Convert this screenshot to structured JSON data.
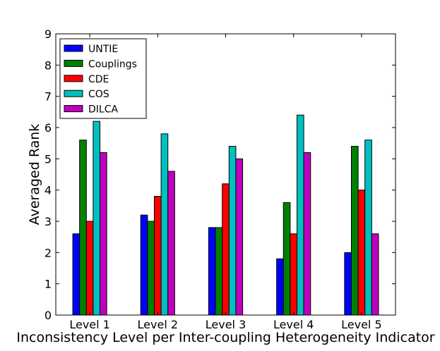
{
  "chart_data": {
    "type": "bar",
    "title": "",
    "xlabel": "Inconsistency Level per Inter-coupling Heterogeneity Indicator",
    "ylabel": "Averaged Rank",
    "ylim": [
      0,
      9
    ],
    "yticks": [
      0,
      1,
      2,
      3,
      4,
      5,
      6,
      7,
      8,
      9
    ],
    "grid": false,
    "legend_position": "top-left",
    "categories": [
      "Level 1",
      "Level 2",
      "Level 3",
      "Level 4",
      "Level 5"
    ],
    "series": [
      {
        "name": "UNTIE",
        "color": "#0000ff",
        "values": [
          2.6,
          3.2,
          2.8,
          1.8,
          2.0
        ]
      },
      {
        "name": "Couplings",
        "color": "#008000",
        "values": [
          5.6,
          3.0,
          2.8,
          3.6,
          5.4
        ]
      },
      {
        "name": "CDE",
        "color": "#ff0000",
        "values": [
          3.0,
          3.8,
          4.2,
          2.6,
          4.0
        ]
      },
      {
        "name": "COS",
        "color": "#00bfbf",
        "values": [
          6.2,
          5.8,
          5.4,
          6.4,
          5.6
        ]
      },
      {
        "name": "DILCA",
        "color": "#bf00bf",
        "values": [
          5.2,
          4.6,
          5.0,
          5.2,
          2.6
        ]
      }
    ]
  }
}
